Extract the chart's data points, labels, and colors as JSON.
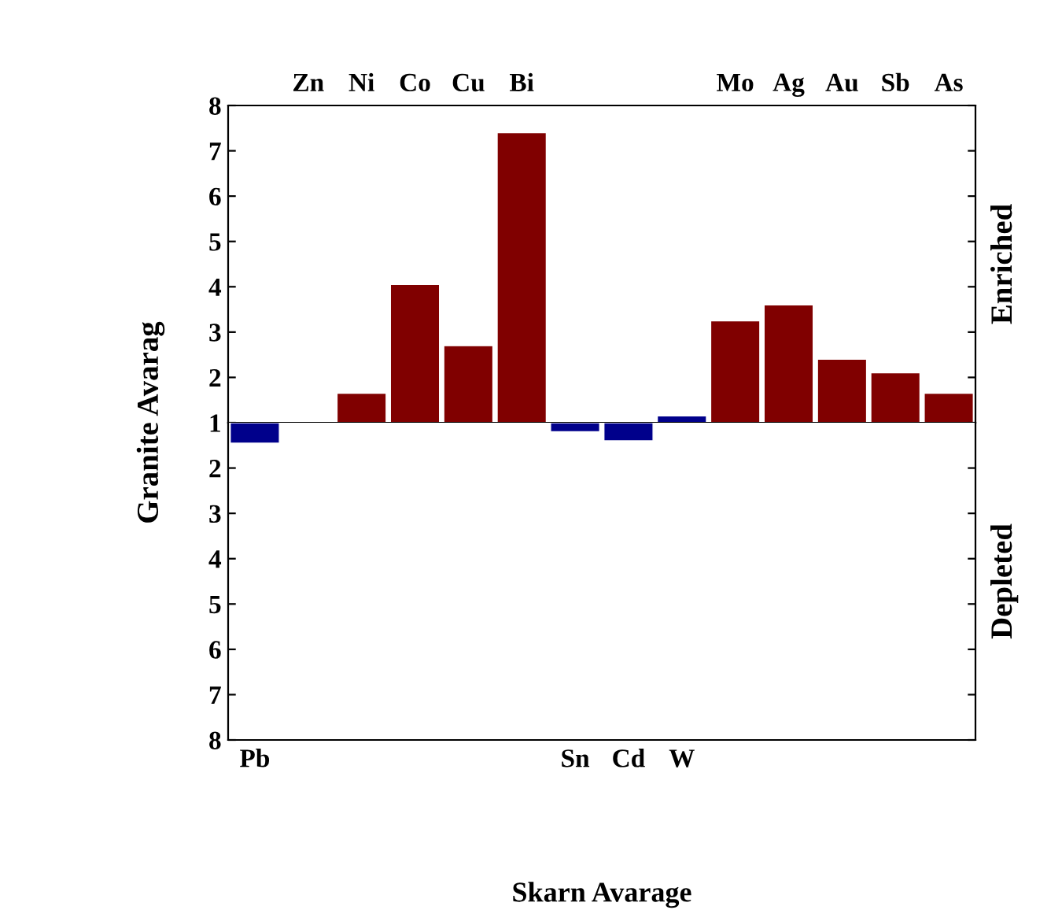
{
  "chart_data": [
    {
      "type": "bar",
      "ylabel": "Granite Avarag",
      "categories": [
        null,
        "Zn",
        "Ni",
        "Co",
        "Cu",
        "Bi",
        null,
        null,
        null,
        "Mo",
        "Ag",
        "Au",
        "Sb",
        "As"
      ],
      "values": [
        null,
        null,
        1.65,
        4.05,
        2.7,
        7.4,
        null,
        null,
        1.15,
        3.25,
        3.6,
        2.4,
        2.1,
        1.65
      ],
      "colors": [
        "#800000",
        "#800000",
        "#800000",
        "#800000",
        "#800000",
        "#800000",
        "#800000",
        "#800000",
        "#00008b",
        "#800000",
        "#800000",
        "#800000",
        "#800000",
        "#800000"
      ],
      "ylim": [
        1,
        8
      ],
      "yticks": [
        1,
        2,
        3,
        4,
        5,
        6,
        7,
        8
      ],
      "annotations": [
        "Enriched"
      ],
      "grid": false
    },
    {
      "type": "bar",
      "xlabel": "Skarn Avarage",
      "categories": [
        "Pb",
        null,
        null,
        null,
        null,
        null,
        "Sn",
        "Cd",
        "W",
        null,
        null,
        null,
        null,
        null
      ],
      "values": [
        1.45,
        null,
        null,
        null,
        null,
        null,
        1.2,
        1.4,
        null,
        null,
        null,
        null,
        null,
        null
      ],
      "colors": [
        "#00008b",
        "#00008b",
        "#00008b",
        "#00008b",
        "#00008b",
        "#00008b",
        "#00008b",
        "#00008b",
        "#00008b",
        "#00008b",
        "#00008b",
        "#00008b",
        "#00008b",
        "#00008b"
      ],
      "ylim": [
        8,
        1
      ],
      "yticks": [
        2,
        3,
        4,
        5,
        6,
        7,
        8
      ],
      "annotations": [
        "Depleted"
      ],
      "grid": false
    }
  ]
}
